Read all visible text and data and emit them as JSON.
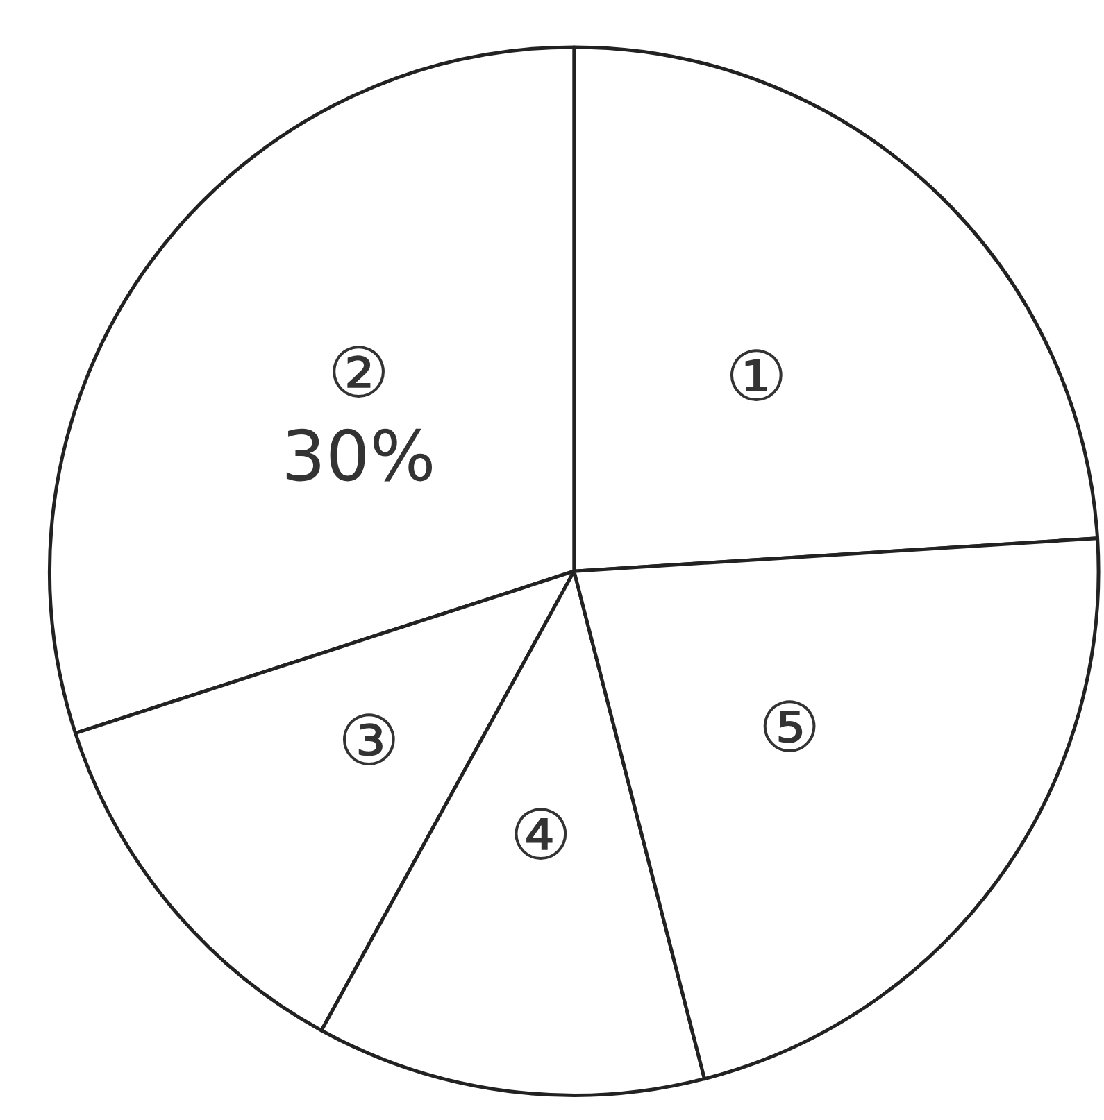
{
  "chart_data": {
    "type": "pie",
    "categories": [
      "①",
      "②",
      "③",
      "④",
      "⑤"
    ],
    "values": [
      24,
      30,
      12,
      12,
      22
    ],
    "value_labels": [
      null,
      "30%",
      null,
      null,
      null
    ],
    "colors": [
      "#ffffff",
      "#ffffff",
      "#ffffff",
      "#ffffff",
      "#ffffff"
    ],
    "legend": false
  }
}
